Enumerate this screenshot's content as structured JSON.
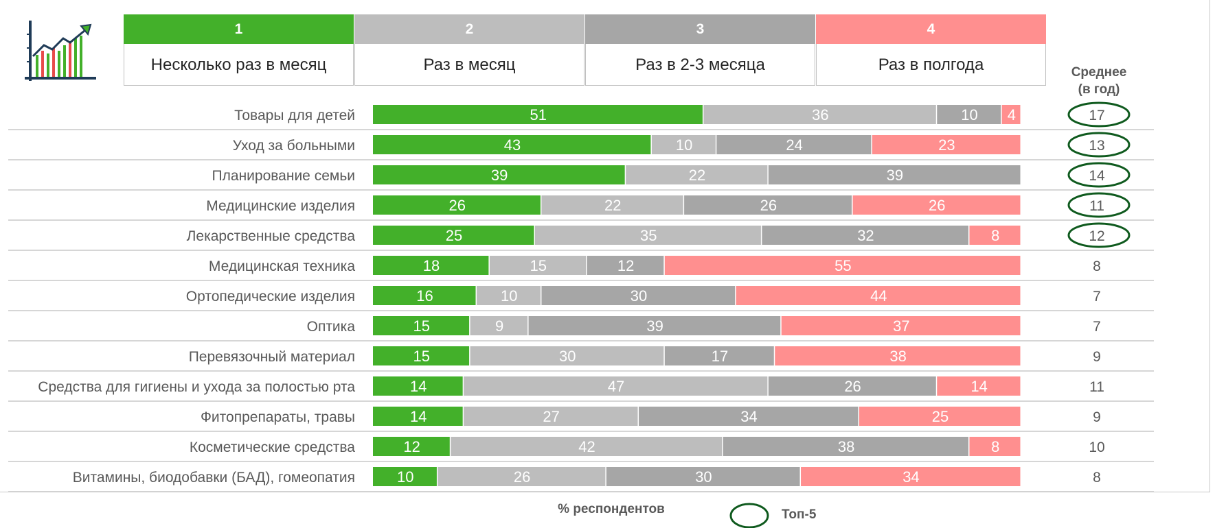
{
  "header": {
    "columns": [
      {
        "num": "1",
        "label": "Несколько раз в месяц",
        "color": "#43b02a"
      },
      {
        "num": "2",
        "label": "Раз в месяц",
        "color": "#bdbdbd"
      },
      {
        "num": "3",
        "label": "Раз в 2-3 месяца",
        "color": "#a6a6a6"
      },
      {
        "num": "4",
        "label": "Раз в полгода",
        "color": "#ff8f8f"
      }
    ],
    "avg_title_line1": "Среднее",
    "avg_title_line2": "(в год)"
  },
  "icons": {
    "logo": "bar-chart-growth-icon",
    "top5_marker": "circle-highlight-icon"
  },
  "footer": {
    "unit_label": "% респондентов",
    "legend_top5": "Топ-5"
  },
  "colors": {
    "highlight_circle": "#0f5a1e",
    "divider": "#c8c8c8",
    "value_text": "#ffffff"
  },
  "chart_data": {
    "type": "bar",
    "orientation": "horizontal",
    "stacked": true,
    "unit": "% респондентов",
    "categories": [
      "Товары для детей",
      "Уход за больными",
      "Планирование семьи",
      "Медицинские изделия",
      "Лекарственные средства",
      "Медицинская техника",
      "Ортопедические изделия",
      "Оптика",
      "Перевязочный материал",
      "Средства для гигиены и ухода за полостью рта",
      "Фитопрепараты, травы",
      "Косметические средства",
      "Витамины, биодобавки (БАД), гомеопатия"
    ],
    "series": [
      {
        "name": "Несколько раз в месяц",
        "color": "#43b02a",
        "values": [
          51,
          43,
          39,
          26,
          25,
          18,
          16,
          15,
          15,
          14,
          14,
          12,
          10
        ]
      },
      {
        "name": "Раз в месяц",
        "color": "#bdbdbd",
        "values": [
          36,
          10,
          22,
          22,
          35,
          15,
          10,
          9,
          30,
          47,
          27,
          42,
          26
        ]
      },
      {
        "name": "Раз в 2-3 месяца",
        "color": "#a6a6a6",
        "values": [
          10,
          24,
          39,
          26,
          32,
          12,
          30,
          39,
          17,
          26,
          34,
          38,
          30
        ]
      },
      {
        "name": "Раз в полгода",
        "color": "#ff8f8f",
        "values": [
          4,
          23,
          null,
          26,
          8,
          55,
          44,
          37,
          38,
          14,
          25,
          8,
          34
        ]
      }
    ],
    "average_per_year": [
      17,
      13,
      14,
      11,
      12,
      8,
      7,
      7,
      9,
      11,
      9,
      10,
      8
    ],
    "top5": [
      true,
      true,
      true,
      true,
      true,
      false,
      false,
      false,
      false,
      false,
      false,
      false,
      false
    ],
    "xlim": [
      0,
      100
    ],
    "grid": false,
    "legend": "top"
  }
}
